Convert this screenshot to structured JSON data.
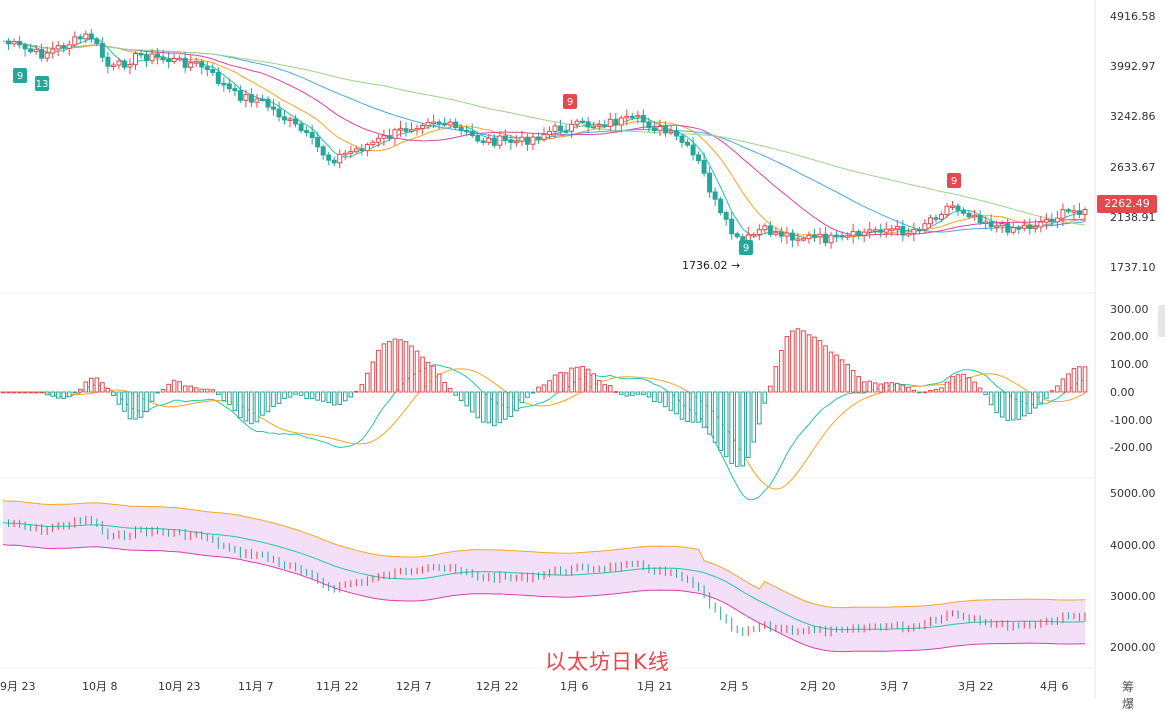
{
  "chart_data": {
    "type": "candlestick",
    "dates": [
      "9月 23",
      "10月 8",
      "10月 23",
      "11月 7",
      "11月 22",
      "12月 7",
      "12月 22",
      "1月 6",
      "1月 21",
      "2月 5",
      "2月 20",
      "3月 7",
      "3月 22",
      "4月 6"
    ],
    "panels": [
      {
        "name": "price",
        "y_ticks": [
          "4916.58",
          "3992.97",
          "3242.86",
          "2633.67",
          "2138.91",
          "1737.10"
        ],
        "last_price": "2262.49",
        "low_marker": "1736.02",
        "indicators": [
          "MA",
          "TD sequential"
        ],
        "td_markers": [
          "9",
          "13",
          "9",
          "9",
          "9"
        ]
      },
      {
        "name": "macd",
        "y_ticks": [
          "300.00",
          "200.00",
          "100.00",
          "0.00",
          "-100.00",
          "-200.00"
        ]
      },
      {
        "name": "bollinger",
        "y_ticks": [
          "5000.00",
          "4000.00",
          "3000.00",
          "2000.00"
        ]
      }
    ],
    "series_colors": {
      "up": "#e5484d",
      "down": "#26a69a",
      "ma5": "#26c6a0",
      "ma10": "#f5a623",
      "ma20": "#e040a0",
      "ma30": "#4aa8e0",
      "ma60": "#9ad48a",
      "band_fill": "#f3dcf8",
      "band_upper": "#f5a623",
      "band_lower": "#d63fb0",
      "band_mid": "#26c6a0"
    }
  },
  "watermark": "以太坊日K线",
  "corner_text": "筹 爆"
}
